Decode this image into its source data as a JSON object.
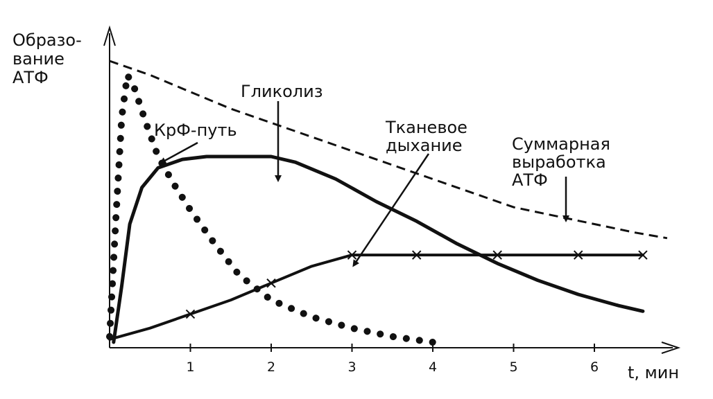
{
  "chart_data": {
    "type": "line",
    "title": "",
    "ylabel_lines": [
      "Образо-",
      "вание",
      "АТФ"
    ],
    "xlabel": "t, мин",
    "x_ticks": [
      "1",
      "2",
      "3",
      "4",
      "5",
      "6"
    ],
    "xlim": [
      0,
      6.9
    ],
    "ylim": [
      0,
      1
    ],
    "grid": false,
    "legend": "none",
    "series": [
      {
        "key": "crp",
        "style": "dotted",
        "x": [
          0.0,
          0.08,
          0.15,
          0.22,
          0.3,
          0.45,
          0.6,
          0.8,
          1.0,
          1.3,
          1.6,
          2.0,
          2.5,
          3.0,
          3.5,
          4.0
        ],
        "y": [
          0.02,
          0.45,
          0.8,
          0.95,
          0.91,
          0.78,
          0.66,
          0.56,
          0.47,
          0.35,
          0.24,
          0.15,
          0.09,
          0.05,
          0.02,
          0.0
        ]
      },
      {
        "key": "glycolysis",
        "style": "solid",
        "x": [
          0.05,
          0.15,
          0.25,
          0.4,
          0.6,
          0.9,
          1.2,
          1.6,
          2.0,
          2.3,
          2.8,
          3.3,
          3.8,
          4.3,
          4.8,
          5.3,
          5.8,
          6.3,
          6.6
        ],
        "y": [
          0.0,
          0.2,
          0.42,
          0.55,
          0.62,
          0.65,
          0.66,
          0.66,
          0.66,
          0.64,
          0.58,
          0.5,
          0.43,
          0.35,
          0.28,
          0.22,
          0.17,
          0.13,
          0.11
        ]
      },
      {
        "key": "respiration",
        "style": "solid-crossed",
        "x": [
          0.0,
          0.5,
          1.0,
          1.5,
          2.0,
          2.5,
          3.0,
          3.3,
          3.8,
          4.3,
          4.8,
          5.3,
          5.8,
          6.3,
          6.6
        ],
        "y": [
          0.01,
          0.05,
          0.1,
          0.15,
          0.21,
          0.27,
          0.31,
          0.31,
          0.31,
          0.31,
          0.31,
          0.31,
          0.31,
          0.31,
          0.31
        ]
      },
      {
        "key": "total",
        "style": "dashed",
        "x": [
          0.0,
          0.5,
          1.0,
          1.5,
          2.0,
          2.5,
          3.0,
          3.5,
          4.0,
          4.5,
          5.0,
          5.5,
          6.0,
          6.5,
          6.9
        ],
        "y": [
          1.0,
          0.95,
          0.89,
          0.83,
          0.78,
          0.73,
          0.68,
          0.63,
          0.58,
          0.53,
          0.48,
          0.45,
          0.42,
          0.39,
          0.37
        ]
      }
    ],
    "annotations": [
      {
        "key": "crp",
        "lines": [
          "КрФ-путь"
        ]
      },
      {
        "key": "glycolysis",
        "lines": [
          "Гликолиз"
        ]
      },
      {
        "key": "respiration",
        "lines": [
          "Тканевое",
          "дыхание"
        ]
      },
      {
        "key": "total",
        "lines": [
          "Суммарная",
          "выработка",
          "АТФ"
        ]
      }
    ]
  }
}
